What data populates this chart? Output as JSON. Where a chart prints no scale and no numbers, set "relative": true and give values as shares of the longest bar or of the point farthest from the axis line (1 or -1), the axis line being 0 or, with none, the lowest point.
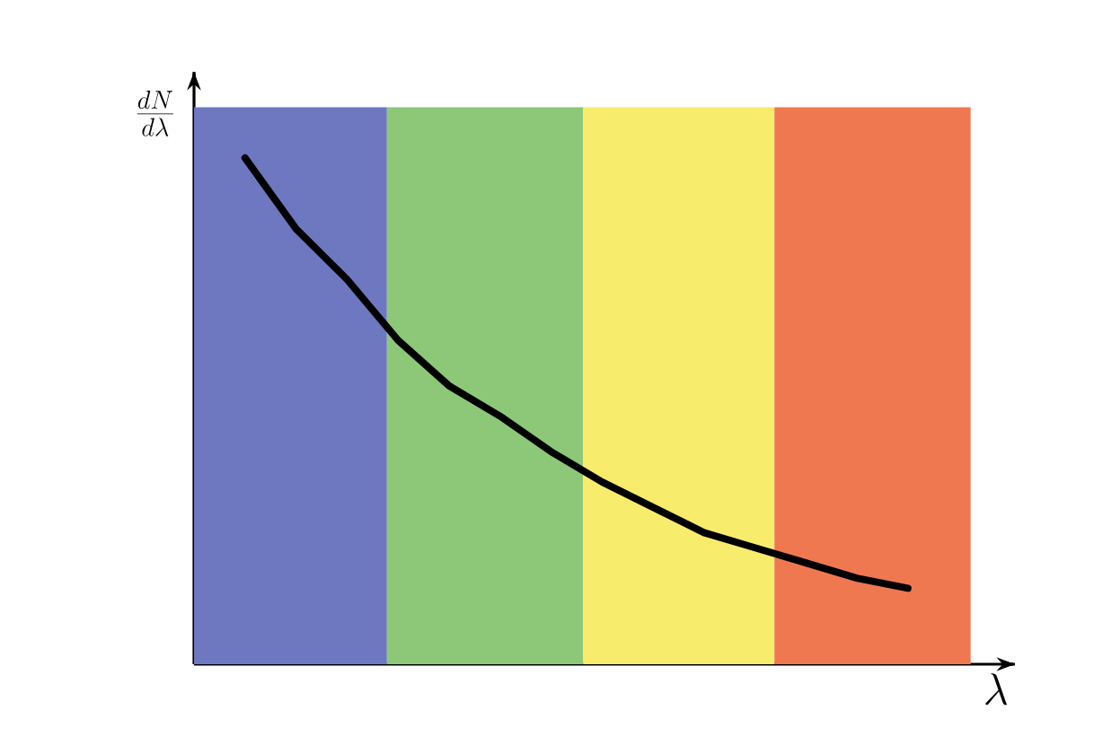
{
  "chart_data": {
    "type": "line",
    "relative": true,
    "xlabel": "\\lambda",
    "ylabel": "\\frac{dN}{d\\lambda}",
    "categories": [
      null,
      null,
      null,
      null,
      null,
      null,
      null,
      null,
      null,
      null,
      null,
      null,
      null,
      null
    ],
    "series": [
      {
        "color": "#000000",
        "values": [
          1,
          0.86,
          0.76,
          0.64,
          0.55,
          0.49,
          0.42,
          0.36,
          0.31,
          0.26,
          0.23,
          0.2,
          0.17,
          0.15
        ]
      }
    ],
    "marker": "none",
    "line_style": "solid"
  }
}
